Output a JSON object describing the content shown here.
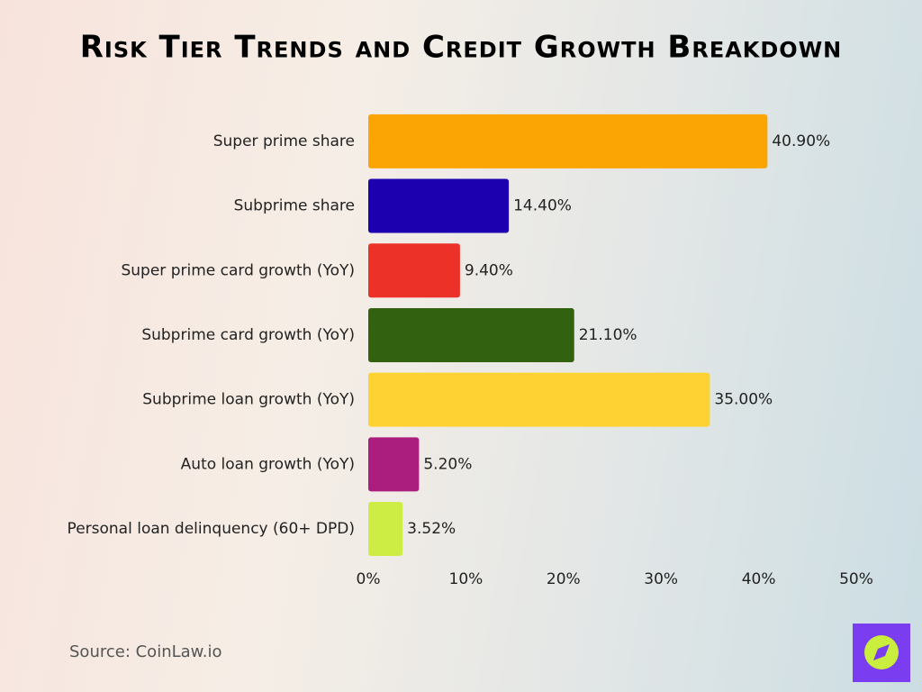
{
  "chart_data": {
    "type": "hbar",
    "title": "Risk Tier Trends and Credit Growth Breakdown",
    "categories": [
      "Super prime share",
      "Subprime share",
      "Super prime card growth (YoY)",
      "Subprime card growth (YoY)",
      "Subprime loan growth (YoY)",
      "Auto loan growth (YoY)",
      "Personal loan delinquency (60+ DPD)"
    ],
    "values": [
      40.9,
      14.4,
      9.4,
      21.1,
      35.0,
      5.2,
      3.52
    ],
    "value_labels": [
      "40.90%",
      "14.40%",
      "9.40%",
      "21.10%",
      "35.00%",
      "5.20%",
      "3.52%"
    ],
    "colors": [
      "#fba504",
      "#1c00b0",
      "#ec3128",
      "#32620f",
      "#ffd233",
      "#ab1e7d",
      "#cded45"
    ],
    "xlim": [
      0,
      50
    ],
    "xticks": [
      {
        "value": 0,
        "label": "0%"
      },
      {
        "value": 10,
        "label": "10%"
      },
      {
        "value": 20,
        "label": "20%"
      },
      {
        "value": 30,
        "label": "30%"
      },
      {
        "value": 40,
        "label": "40%"
      },
      {
        "value": 50,
        "label": "50%"
      }
    ],
    "grid": false,
    "source": "Source: CoinLaw.io"
  }
}
